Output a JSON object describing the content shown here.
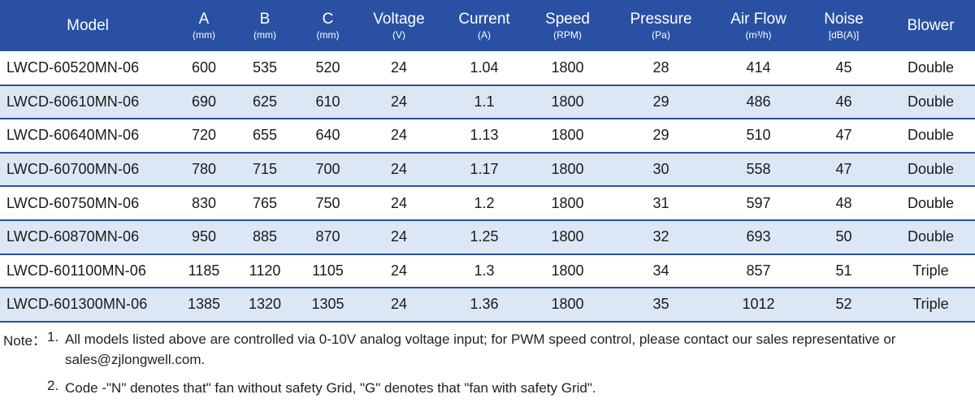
{
  "table": {
    "headers": [
      {
        "name": "Model",
        "unit": ""
      },
      {
        "name": "A",
        "unit": "(mm)"
      },
      {
        "name": "B",
        "unit": "(mm)"
      },
      {
        "name": "C",
        "unit": "(mm)"
      },
      {
        "name": "Voltage",
        "unit": "(V)"
      },
      {
        "name": "Current",
        "unit": "(A)"
      },
      {
        "name": "Speed",
        "unit": "(RPM)"
      },
      {
        "name": "Pressure",
        "unit": "(Pa)"
      },
      {
        "name": "Air Flow",
        "unit": "(m³/h)"
      },
      {
        "name": "Noise",
        "unit": "[dB(A)]"
      },
      {
        "name": "Blower",
        "unit": ""
      }
    ],
    "rows": [
      [
        "LWCD-60520MN-06",
        "600",
        "535",
        "520",
        "24",
        "1.04",
        "1800",
        "28",
        "414",
        "45",
        "Double"
      ],
      [
        "LWCD-60610MN-06",
        "690",
        "625",
        "610",
        "24",
        "1.1",
        "1800",
        "29",
        "486",
        "46",
        "Double"
      ],
      [
        "LWCD-60640MN-06",
        "720",
        "655",
        "640",
        "24",
        "1.13",
        "1800",
        "29",
        "510",
        "47",
        "Double"
      ],
      [
        "LWCD-60700MN-06",
        "780",
        "715",
        "700",
        "24",
        "1.17",
        "1800",
        "30",
        "558",
        "47",
        "Double"
      ],
      [
        "LWCD-60750MN-06",
        "830",
        "765",
        "750",
        "24",
        "1.2",
        "1800",
        "31",
        "597",
        "48",
        "Double"
      ],
      [
        "LWCD-60870MN-06",
        "950",
        "885",
        "870",
        "24",
        "1.25",
        "1800",
        "32",
        "693",
        "50",
        "Double"
      ],
      [
        "LWCD-601100MN-06",
        "1185",
        "1120",
        "1105",
        "24",
        "1.3",
        "1800",
        "34",
        "857",
        "51",
        "Triple"
      ],
      [
        "LWCD-601300MN-06",
        "1385",
        "1320",
        "1305",
        "24",
        "1.36",
        "1800",
        "35",
        "1012",
        "52",
        "Triple"
      ]
    ]
  },
  "colors": {
    "header_bg": "#2a50a3",
    "header_text": "#ffffff",
    "row_shade": "#dce7f5",
    "row_divider": "#2a50a3"
  },
  "notes": {
    "label": "Note：",
    "items": [
      {
        "num": "1.",
        "text": "All models listed above are controlled via 0-10V analog voltage input; for PWM speed control, please contact our sales representative or sales@zjlongwell.com."
      },
      {
        "num": "2.",
        "text": "Code -\"N\" denotes that\" fan without safety Grid, \"G\" denotes that \"fan with safety Grid\"."
      }
    ]
  }
}
